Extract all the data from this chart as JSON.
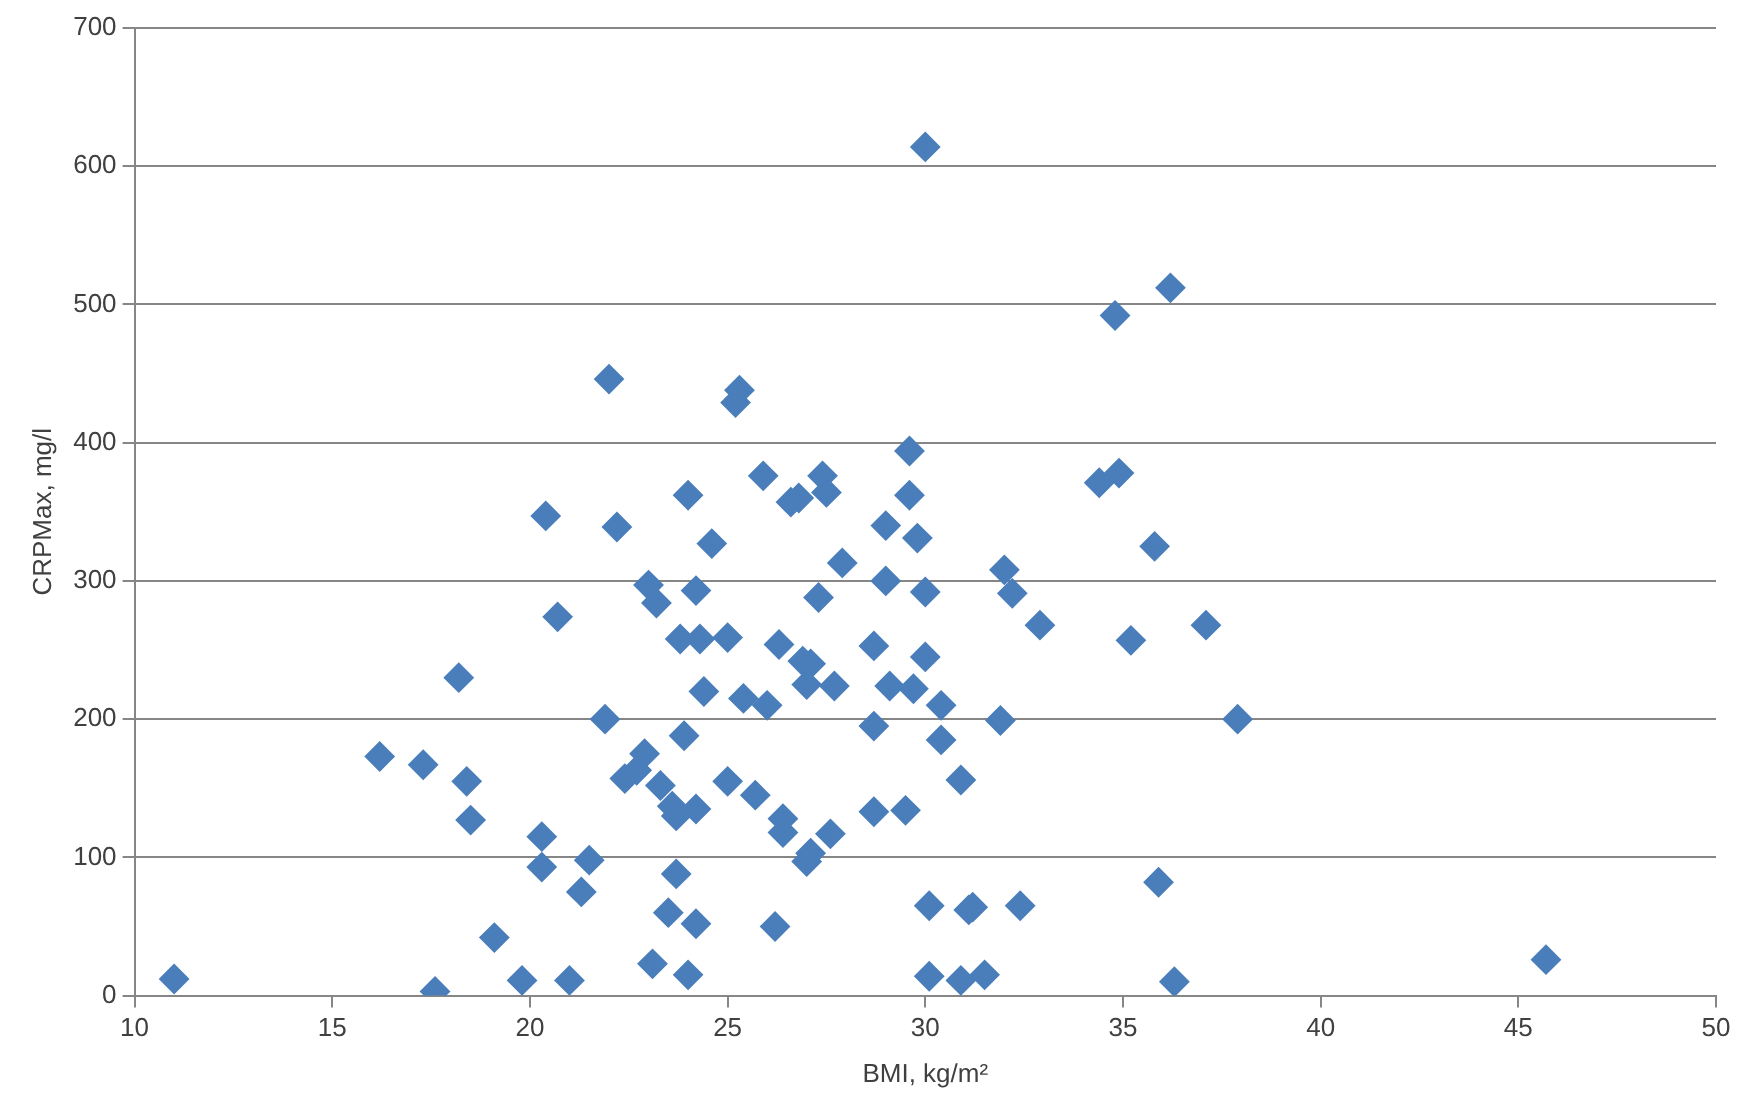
{
  "chart_data": {
    "type": "scatter",
    "xlabel": "BMI, kg/m²",
    "ylabel": "CRPMax, mg/l",
    "x": [
      11.0,
      16.2,
      17.3,
      17.6,
      18.2,
      18.4,
      18.5,
      19.1,
      19.8,
      20.3,
      20.3,
      20.4,
      20.7,
      21.0,
      21.3,
      21.5,
      21.9,
      22.0,
      22.2,
      22.4,
      22.7,
      22.9,
      23.0,
      23.1,
      23.2,
      23.3,
      23.5,
      23.6,
      23.7,
      23.7,
      23.8,
      23.9,
      24.0,
      24.0,
      24.2,
      24.2,
      24.2,
      24.3,
      24.4,
      24.6,
      25.0,
      25.0,
      25.2,
      25.3,
      25.4,
      25.7,
      25.9,
      26.0,
      26.2,
      26.3,
      26.4,
      26.4,
      26.6,
      26.8,
      26.9,
      27.0,
      27.0,
      27.1,
      27.1,
      27.3,
      27.4,
      27.5,
      27.6,
      27.7,
      27.9,
      28.7,
      28.7,
      28.7,
      29.0,
      29.0,
      29.1,
      29.5,
      29.6,
      29.6,
      29.7,
      29.8,
      30.0,
      30.0,
      30.0,
      30.1,
      30.1,
      30.4,
      30.4,
      30.9,
      30.9,
      31.1,
      31.2,
      31.5,
      31.9,
      32.0,
      32.2,
      32.4,
      32.9,
      34.4,
      34.8,
      34.9,
      35.2,
      35.8,
      35.9,
      36.2,
      36.3,
      37.1,
      37.9,
      45.7
    ],
    "values": [
      12,
      173,
      167,
      3,
      230,
      155,
      127,
      42,
      11,
      115,
      93,
      347,
      274,
      11,
      75,
      98,
      200,
      446,
      339,
      157,
      163,
      175,
      297,
      23,
      284,
      152,
      60,
      137,
      88,
      130,
      258,
      188,
      15,
      362,
      52,
      293,
      135,
      258,
      220,
      327,
      155,
      259,
      429,
      438,
      215,
      145,
      376,
      210,
      50,
      254,
      128,
      118,
      357,
      360,
      242,
      225,
      97,
      103,
      240,
      288,
      376,
      364,
      117,
      224,
      313,
      253,
      195,
      133,
      300,
      340,
      224,
      134,
      394,
      362,
      222,
      331,
      614,
      292,
      245,
      65,
      14,
      210,
      185,
      11,
      156,
      62,
      64,
      15,
      199,
      308,
      291,
      65,
      268,
      371,
      492,
      378,
      257,
      325,
      82,
      512,
      10,
      268,
      200,
      26
    ],
    "color": "#4a7ebb",
    "marker": "diamond",
    "xlim": [
      10,
      50
    ],
    "xticks": [
      10,
      15,
      20,
      25,
      30,
      35,
      40,
      45,
      50
    ],
    "ylim": [
      0,
      700
    ],
    "yticks": [
      0,
      100,
      200,
      300,
      400,
      500,
      600,
      700
    ],
    "grid": "y",
    "legend": false
  }
}
